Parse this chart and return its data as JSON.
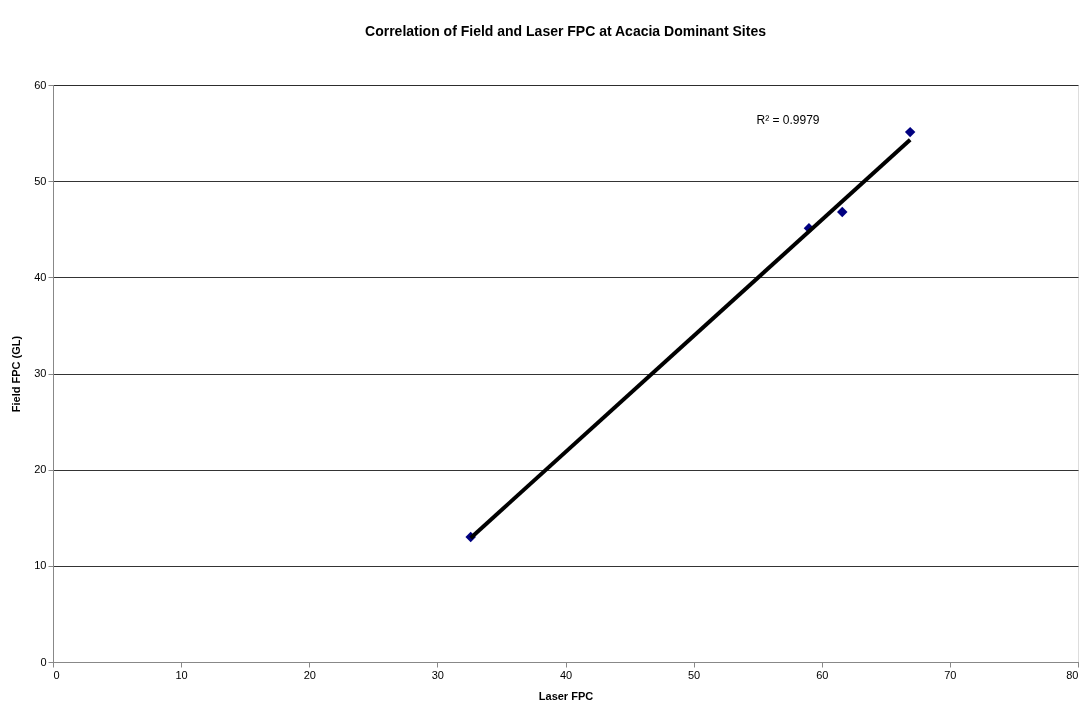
{
  "chart_data": {
    "type": "scatter",
    "title": "Correlation of Field and Laser FPC at Acacia Dominant Sites",
    "xlabel": "Laser FPC",
    "ylabel": "Field FPC (GL)",
    "series": [
      {
        "color": "#000080",
        "marker": "diamond",
        "x": [
          32.6,
          59.0,
          61.6,
          66.9
        ],
        "values": [
          13.0,
          45.1,
          46.8,
          55.1
        ]
      },
      {
        "type": "line",
        "color": "#000000",
        "line_style": "solid",
        "x": [
          32.6,
          66.9
        ],
        "values": [
          12.9,
          54.3
        ]
      }
    ],
    "annotations": [
      "R² = 0.9979"
    ],
    "xlim": [
      0,
      80
    ],
    "xticks": [
      0,
      10,
      20,
      30,
      40,
      50,
      60,
      70,
      80
    ],
    "ylim": [
      0,
      60
    ],
    "yticks": [
      0,
      10,
      20,
      30,
      40,
      50,
      60
    ],
    "grid": "y"
  }
}
